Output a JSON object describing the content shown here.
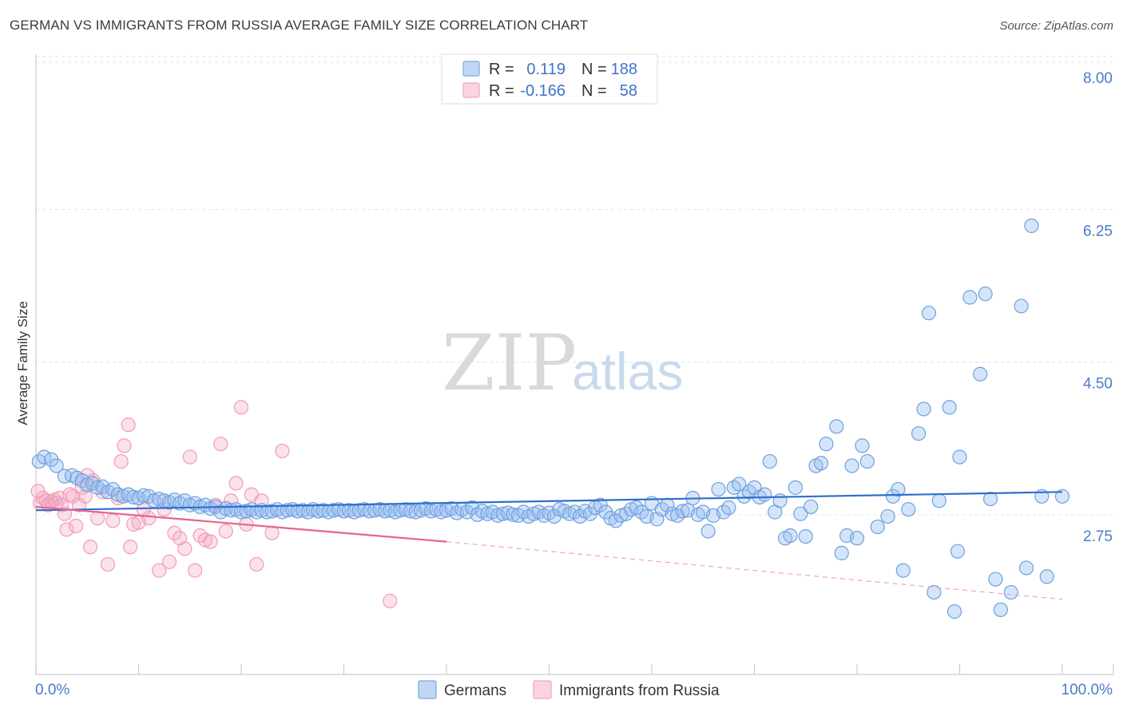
{
  "title": "GERMAN VS IMMIGRANTS FROM RUSSIA AVERAGE FAMILY SIZE CORRELATION CHART",
  "source": "Source: ZipAtlas.com",
  "watermark": {
    "zip": "ZIP",
    "atlas": "atlas"
  },
  "legend": {
    "rows": [
      {
        "r_label": "R =",
        "r_value": "0.119",
        "n_label": "N =",
        "n_value": "188",
        "color": "#7ba7e0"
      },
      {
        "r_label": "R =",
        "r_value": "-0.166",
        "n_label": "N =",
        "n_value": "58",
        "color": "#f0a3bc"
      }
    ]
  },
  "bottom_legend": {
    "germans": "Germans",
    "immigrants": "Immigrants from Russia"
  },
  "chart_data": {
    "type": "scatter",
    "title": "GERMAN VS IMMIGRANTS FROM RUSSIA AVERAGE FAMILY SIZE CORRELATION CHART",
    "ylabel": "Average Family Size",
    "xlabel": "",
    "xlim": [
      0,
      100
    ],
    "ylim": [
      1.3,
      8.25
    ],
    "y_ticks": [
      {
        "value": 2.75,
        "label": "2.75"
      },
      {
        "value": 4.5,
        "label": "4.50"
      },
      {
        "value": 6.25,
        "label": "6.25"
      },
      {
        "value": 8.0,
        "label": "8.00"
      }
    ],
    "x_tick_labels": [
      {
        "value": 0,
        "label": "0.0%"
      },
      {
        "value": 100,
        "label": "100.0%"
      }
    ],
    "grid": "horizontal dashed",
    "legend_position": "top-center",
    "colors": {
      "germans": "#6f9fe0",
      "germans_line": "#2f6fcc",
      "immigrants": "#f29bb6",
      "immigrants_line": "#e8638f"
    },
    "series": [
      {
        "name": "Germans",
        "r": 0.119,
        "n": 188,
        "trend": {
          "x0": 0,
          "y0": 3.04,
          "x1": 100,
          "y1": 3.25
        },
        "points": [
          [
            0.3,
            3.6
          ],
          [
            0.8,
            3.65
          ],
          [
            1.5,
            3.62
          ],
          [
            2,
            3.55
          ],
          [
            2.8,
            3.43
          ],
          [
            3.5,
            3.44
          ],
          [
            4,
            3.41
          ],
          [
            4.5,
            3.38
          ],
          [
            5,
            3.33
          ],
          [
            5.5,
            3.35
          ],
          [
            6,
            3.3
          ],
          [
            6.5,
            3.31
          ],
          [
            7,
            3.25
          ],
          [
            7.5,
            3.28
          ],
          [
            8,
            3.22
          ],
          [
            8.5,
            3.2
          ],
          [
            9,
            3.22
          ],
          [
            9.5,
            3.19
          ],
          [
            10,
            3.18
          ],
          [
            10.5,
            3.21
          ],
          [
            11,
            3.2
          ],
          [
            11.5,
            3.15
          ],
          [
            12,
            3.17
          ],
          [
            12.5,
            3.15
          ],
          [
            13,
            3.13
          ],
          [
            13.5,
            3.16
          ],
          [
            14,
            3.12
          ],
          [
            14.5,
            3.15
          ],
          [
            15,
            3.1
          ],
          [
            15.5,
            3.12
          ],
          [
            16,
            3.08
          ],
          [
            16.5,
            3.1
          ],
          [
            17,
            3.06
          ],
          [
            17.5,
            3.08
          ],
          [
            18,
            3.02
          ],
          [
            18.5,
            3.06
          ],
          [
            19,
            3.04
          ],
          [
            19.5,
            3.05
          ],
          [
            20,
            3.02
          ],
          [
            20.5,
            3.03
          ],
          [
            21,
            3.05
          ],
          [
            21.5,
            3.02
          ],
          [
            22,
            3.04
          ],
          [
            22.5,
            3.02
          ],
          [
            23,
            3.03
          ],
          [
            23.5,
            3.05
          ],
          [
            24,
            3.02
          ],
          [
            24.5,
            3.04
          ],
          [
            25,
            3.05
          ],
          [
            25.5,
            3.03
          ],
          [
            26,
            3.04
          ],
          [
            26.5,
            3.02
          ],
          [
            27,
            3.05
          ],
          [
            27.5,
            3.03
          ],
          [
            28,
            3.04
          ],
          [
            28.5,
            3.02
          ],
          [
            29,
            3.04
          ],
          [
            29.5,
            3.05
          ],
          [
            30,
            3.03
          ],
          [
            30.5,
            3.04
          ],
          [
            31,
            3.02
          ],
          [
            31.5,
            3.04
          ],
          [
            32,
            3.05
          ],
          [
            32.5,
            3.03
          ],
          [
            33,
            3.04
          ],
          [
            33.5,
            3.05
          ],
          [
            34,
            3.03
          ],
          [
            34.5,
            3.04
          ],
          [
            35,
            3.02
          ],
          [
            35.5,
            3.04
          ],
          [
            36,
            3.05
          ],
          [
            36.5,
            3.03
          ],
          [
            37,
            3.02
          ],
          [
            37.5,
            3.04
          ],
          [
            38,
            3.06
          ],
          [
            38.5,
            3.03
          ],
          [
            39,
            3.05
          ],
          [
            39.5,
            3.02
          ],
          [
            40,
            3.04
          ],
          [
            40.5,
            3.06
          ],
          [
            41,
            3.01
          ],
          [
            41.5,
            3.05
          ],
          [
            42,
            3.02
          ],
          [
            42.5,
            3.07
          ],
          [
            43,
            2.99
          ],
          [
            43.5,
            3.03
          ],
          [
            44,
            3.0
          ],
          [
            44.5,
            3.02
          ],
          [
            45,
            2.98
          ],
          [
            45.5,
            3.0
          ],
          [
            46,
            3.01
          ],
          [
            46.5,
            2.99
          ],
          [
            47,
            2.98
          ],
          [
            47.5,
            3.02
          ],
          [
            48,
            2.97
          ],
          [
            48.5,
            3.0
          ],
          [
            49,
            3.02
          ],
          [
            49.5,
            2.98
          ],
          [
            50,
            3.01
          ],
          [
            50.5,
            2.97
          ],
          [
            51,
            3.05
          ],
          [
            51.5,
            3.03
          ],
          [
            52,
            3.0
          ],
          [
            52.5,
            3.02
          ],
          [
            53,
            2.97
          ],
          [
            53.5,
            3.03
          ],
          [
            54,
            3.0
          ],
          [
            54.5,
            3.07
          ],
          [
            55,
            3.1
          ],
          [
            55.5,
            3.02
          ],
          [
            56,
            2.95
          ],
          [
            56.5,
            2.92
          ],
          [
            57,
            2.98
          ],
          [
            57.5,
            3.0
          ],
          [
            58,
            3.05
          ],
          [
            58.5,
            3.07
          ],
          [
            59,
            3.02
          ],
          [
            59.5,
            2.97
          ],
          [
            60,
            3.12
          ],
          [
            60.5,
            2.94
          ],
          [
            61,
            3.05
          ],
          [
            61.5,
            3.1
          ],
          [
            62,
            3.0
          ],
          [
            62.5,
            2.98
          ],
          [
            63,
            3.03
          ],
          [
            63.5,
            3.04
          ],
          [
            64,
            3.18
          ],
          [
            64.5,
            2.99
          ],
          [
            65,
            3.02
          ],
          [
            65.5,
            2.8
          ],
          [
            66,
            2.98
          ],
          [
            66.5,
            3.28
          ],
          [
            67,
            3.02
          ],
          [
            67.5,
            3.07
          ],
          [
            68,
            3.3
          ],
          [
            68.5,
            3.34
          ],
          [
            69,
            3.2
          ],
          [
            69.5,
            3.25
          ],
          [
            70,
            3.3
          ],
          [
            70.5,
            3.19
          ],
          [
            71,
            3.22
          ],
          [
            71.5,
            3.6
          ],
          [
            72,
            3.02
          ],
          [
            72.5,
            3.15
          ],
          [
            73,
            2.72
          ],
          [
            73.5,
            2.75
          ],
          [
            74,
            3.3
          ],
          [
            74.5,
            3.0
          ],
          [
            75,
            2.74
          ],
          [
            75.5,
            3.08
          ],
          [
            76,
            3.55
          ],
          [
            76.5,
            3.58
          ],
          [
            77,
            3.8
          ],
          [
            78,
            4.0
          ],
          [
            78.5,
            2.55
          ],
          [
            79,
            2.75
          ],
          [
            79.5,
            3.55
          ],
          [
            80,
            2.72
          ],
          [
            80.5,
            3.78
          ],
          [
            81,
            3.6
          ],
          [
            82,
            2.85
          ],
          [
            83,
            2.97
          ],
          [
            83.5,
            3.2
          ],
          [
            84,
            3.28
          ],
          [
            84.5,
            2.35
          ],
          [
            85,
            3.05
          ],
          [
            86,
            3.92
          ],
          [
            86.5,
            4.2
          ],
          [
            87,
            5.3
          ],
          [
            87.5,
            2.1
          ],
          [
            88,
            3.15
          ],
          [
            89,
            4.22
          ],
          [
            89.5,
            1.88
          ],
          [
            89.8,
            2.57
          ],
          [
            90,
            3.65
          ],
          [
            91,
            5.48
          ],
          [
            92,
            4.6
          ],
          [
            92.5,
            5.52
          ],
          [
            93,
            3.17
          ],
          [
            93.5,
            2.25
          ],
          [
            94,
            1.9
          ],
          [
            95,
            2.1
          ],
          [
            96,
            5.38
          ],
          [
            96.5,
            2.38
          ],
          [
            97,
            6.3
          ],
          [
            98,
            3.2
          ],
          [
            98.5,
            2.28
          ],
          [
            100,
            3.2
          ]
        ]
      },
      {
        "name": "Immigrants from Russia",
        "r": -0.166,
        "n": 58,
        "trend": {
          "x0": 0,
          "y0": 3.08,
          "x1": 40,
          "y1": 2.68,
          "dash_x1": 100,
          "dash_y1": 2.02
        },
        "points": [
          [
            0.2,
            3.26
          ],
          [
            0.4,
            3.12
          ],
          [
            0.7,
            3.18
          ],
          [
            1,
            3.15
          ],
          [
            1.2,
            3.1
          ],
          [
            1.5,
            3.14
          ],
          [
            1.8,
            3.16
          ],
          [
            2,
            3.12
          ],
          [
            2.3,
            3.18
          ],
          [
            2.5,
            3.1
          ],
          [
            2.8,
            3.0
          ],
          [
            3,
            2.82
          ],
          [
            3.3,
            3.22
          ],
          [
            3.6,
            3.2
          ],
          [
            3.9,
            2.86
          ],
          [
            4.2,
            3.1
          ],
          [
            4.5,
            3.3
          ],
          [
            4.8,
            3.2
          ],
          [
            5,
            3.44
          ],
          [
            5.3,
            2.62
          ],
          [
            5.6,
            3.38
          ],
          [
            6,
            2.95
          ],
          [
            6.5,
            3.25
          ],
          [
            7,
            2.42
          ],
          [
            7.5,
            2.92
          ],
          [
            8,
            3.18
          ],
          [
            8.3,
            3.6
          ],
          [
            8.6,
            3.78
          ],
          [
            9,
            4.02
          ],
          [
            9.2,
            2.62
          ],
          [
            9.5,
            2.88
          ],
          [
            10,
            2.9
          ],
          [
            10.5,
            3.05
          ],
          [
            11,
            2.95
          ],
          [
            12,
            2.35
          ],
          [
            12.5,
            3.05
          ],
          [
            13,
            2.45
          ],
          [
            13.5,
            2.78
          ],
          [
            14,
            2.72
          ],
          [
            14.5,
            2.6
          ],
          [
            15,
            3.65
          ],
          [
            15.5,
            2.35
          ],
          [
            16,
            2.75
          ],
          [
            16.5,
            2.7
          ],
          [
            17,
            2.68
          ],
          [
            17.5,
            3.1
          ],
          [
            18,
            3.8
          ],
          [
            18.5,
            2.8
          ],
          [
            19,
            3.15
          ],
          [
            19.5,
            3.35
          ],
          [
            20,
            4.22
          ],
          [
            20.5,
            2.88
          ],
          [
            21,
            3.22
          ],
          [
            21.5,
            2.42
          ],
          [
            22,
            3.15
          ],
          [
            23,
            2.78
          ],
          [
            24,
            3.72
          ],
          [
            34.5,
            2.0
          ]
        ]
      }
    ]
  }
}
